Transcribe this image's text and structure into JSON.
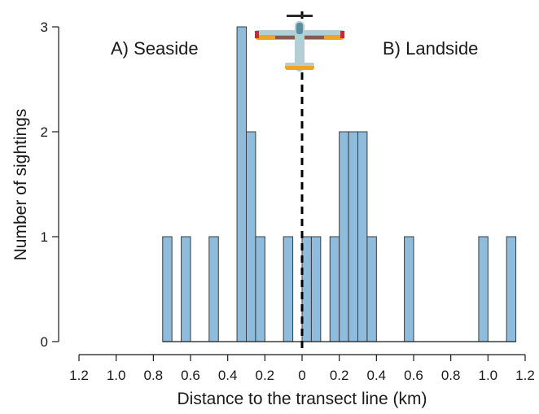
{
  "chart_data": {
    "type": "bar",
    "title": "",
    "xlabel": "Distance to the transect line (km)",
    "ylabel": "Number of sightings",
    "x_tick_labels": [
      "1.2",
      "1.0",
      "0.8",
      "0.6",
      "0.4",
      "0.2",
      "0",
      "0.2",
      "0.4",
      "0.6",
      "0.8",
      "1.0",
      "1.2"
    ],
    "y_ticks": [
      0,
      1,
      2,
      3
    ],
    "xlim": [
      -1.2,
      1.2
    ],
    "ylim": [
      0,
      3
    ],
    "bin_width": 0.05,
    "grid": false,
    "bar_color": "#8fbbdc",
    "annotations": [
      {
        "text": "A) Seaside"
      },
      {
        "text": "B) Landside"
      }
    ],
    "transect_line_at": 0,
    "bins": [
      {
        "start": -0.75,
        "end": -0.7,
        "count": 1
      },
      {
        "start": -0.7,
        "end": -0.65,
        "count": 0
      },
      {
        "start": -0.65,
        "end": -0.6,
        "count": 1
      },
      {
        "start": -0.6,
        "end": -0.55,
        "count": 0
      },
      {
        "start": -0.55,
        "end": -0.5,
        "count": 0
      },
      {
        "start": -0.5,
        "end": -0.45,
        "count": 1
      },
      {
        "start": -0.45,
        "end": -0.4,
        "count": 0
      },
      {
        "start": -0.4,
        "end": -0.35,
        "count": 0
      },
      {
        "start": -0.35,
        "end": -0.3,
        "count": 3
      },
      {
        "start": -0.3,
        "end": -0.25,
        "count": 2
      },
      {
        "start": -0.25,
        "end": -0.2,
        "count": 1
      },
      {
        "start": -0.2,
        "end": -0.15,
        "count": 0
      },
      {
        "start": -0.15,
        "end": -0.1,
        "count": 0
      },
      {
        "start": -0.1,
        "end": -0.05,
        "count": 1
      },
      {
        "start": -0.05,
        "end": 0.0,
        "count": 0
      },
      {
        "start": 0.0,
        "end": 0.05,
        "count": 1
      },
      {
        "start": 0.05,
        "end": 0.1,
        "count": 1
      },
      {
        "start": 0.1,
        "end": 0.15,
        "count": 0
      },
      {
        "start": 0.15,
        "end": 0.2,
        "count": 1
      },
      {
        "start": 0.2,
        "end": 0.25,
        "count": 2
      },
      {
        "start": 0.25,
        "end": 0.3,
        "count": 2
      },
      {
        "start": 0.3,
        "end": 0.35,
        "count": 2
      },
      {
        "start": 0.35,
        "end": 0.4,
        "count": 1
      },
      {
        "start": 0.4,
        "end": 0.45,
        "count": 0
      },
      {
        "start": 0.45,
        "end": 0.5,
        "count": 0
      },
      {
        "start": 0.5,
        "end": 0.55,
        "count": 0
      },
      {
        "start": 0.55,
        "end": 0.6,
        "count": 1
      },
      {
        "start": 0.6,
        "end": 0.65,
        "count": 0
      },
      {
        "start": 0.65,
        "end": 0.7,
        "count": 0
      },
      {
        "start": 0.7,
        "end": 0.75,
        "count": 0
      },
      {
        "start": 0.75,
        "end": 0.8,
        "count": 0
      },
      {
        "start": 0.8,
        "end": 0.85,
        "count": 0
      },
      {
        "start": 0.85,
        "end": 0.9,
        "count": 0
      },
      {
        "start": 0.9,
        "end": 0.95,
        "count": 0
      },
      {
        "start": 0.95,
        "end": 1.0,
        "count": 1
      },
      {
        "start": 1.0,
        "end": 1.05,
        "count": 0
      },
      {
        "start": 1.05,
        "end": 1.1,
        "count": 0
      },
      {
        "start": 1.1,
        "end": 1.15,
        "count": 1
      }
    ],
    "icons": [
      "airplane-icon"
    ]
  }
}
